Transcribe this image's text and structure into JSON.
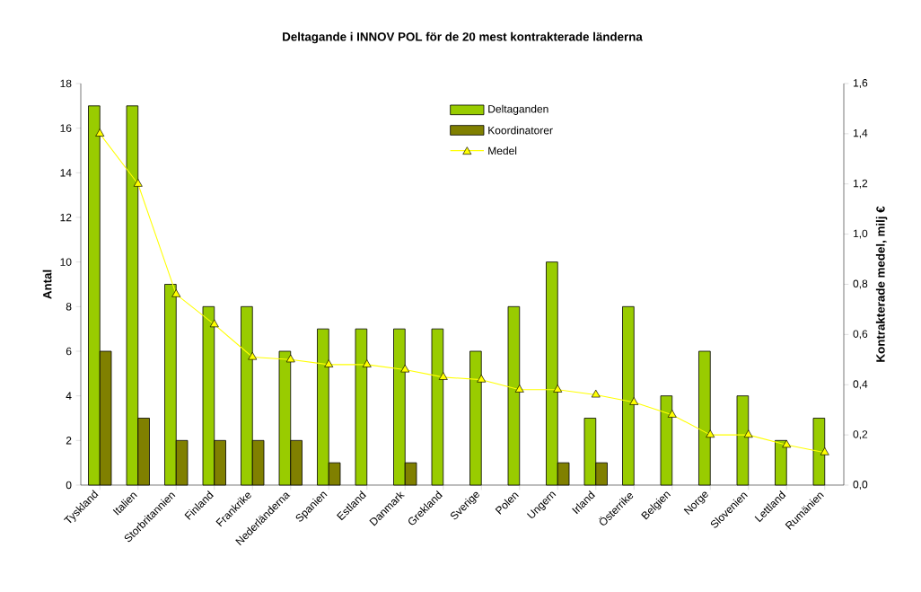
{
  "chart_data": {
    "type": "bar",
    "title": "Deltagande i INNOV POL för de 20 mest kontrakterade länderna",
    "ylabel": "Antal",
    "y2label": "Kontrakterade medel, milj €",
    "categories": [
      "Tyskland",
      "Italien",
      "Storbritannien",
      "Finland",
      "Frankrike",
      "Nederländerna",
      "Spanien",
      "Estland",
      "Danmark",
      "Grekland",
      "Sverige",
      "Polen",
      "Ungern",
      "Irland",
      "Österrike",
      "Belgien",
      "Norge",
      "Slovenien",
      "Lettland",
      "Rumänien"
    ],
    "series": [
      {
        "name": "Deltaganden",
        "color": "#99cc00",
        "values": [
          17,
          17,
          9,
          8,
          8,
          6,
          7,
          7,
          7,
          7,
          6,
          8,
          10,
          3,
          8,
          4,
          6,
          4,
          2,
          3
        ]
      },
      {
        "name": "Koordinatorer",
        "color": "#808000",
        "values": [
          6,
          3,
          2,
          2,
          2,
          2,
          1,
          null,
          1,
          null,
          null,
          null,
          1,
          1,
          null,
          null,
          null,
          null,
          null,
          null
        ]
      },
      {
        "name": "Medel",
        "type": "line",
        "axis": "y2",
        "color": "#ffff00",
        "marker": "triangle",
        "values": [
          1.4,
          1.2,
          0.76,
          0.64,
          0.51,
          0.5,
          0.48,
          0.48,
          0.46,
          0.43,
          0.42,
          0.38,
          0.38,
          0.36,
          0.33,
          0.28,
          0.2,
          0.2,
          0.16,
          0.13
        ]
      }
    ],
    "ylim": [
      0,
      18
    ],
    "yticks": [
      0,
      2,
      4,
      6,
      8,
      10,
      12,
      14,
      16,
      18
    ],
    "y2lim": [
      0,
      1.6
    ],
    "y2ticks": [
      {
        "value": 0,
        "label": "0,0"
      },
      {
        "value": 0.2,
        "label": "0,2"
      },
      {
        "value": 0.4,
        "label": "0,4"
      },
      {
        "value": 0.6,
        "label": "0,6"
      },
      {
        "value": 0.8,
        "label": "0,8"
      },
      {
        "value": 1.0,
        "label": "1,0"
      },
      {
        "value": 1.2,
        "label": "1,2"
      },
      {
        "value": 1.4,
        "label": "1,4"
      },
      {
        "value": 1.6,
        "label": "1,6"
      }
    ],
    "grid": false,
    "legend": "top"
  }
}
